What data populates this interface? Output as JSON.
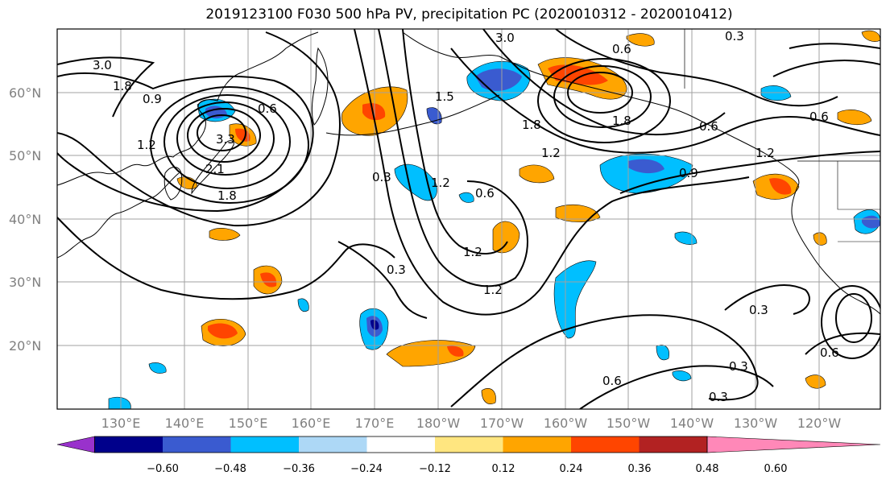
{
  "title": "2019123100 F030 500 hPa PV, precipitation PC (2020010312 - 2020010412)",
  "lat_labels": [
    "60°N",
    "50°N",
    "40°N",
    "30°N",
    "20°N"
  ],
  "lon_labels": [
    "130°E",
    "140°E",
    "150°E",
    "160°E",
    "170°E",
    "180°W",
    "170°W",
    "160°W",
    "150°W",
    "140°W",
    "130°W",
    "120°W"
  ],
  "colorbar": {
    "colors": [
      "#9932CC",
      "#00008B",
      "#3A5BD0",
      "#00BFFF",
      "#ADD8F6",
      "#FFFFFF",
      "#FFE680",
      "#FFA500",
      "#FF4500",
      "#B22222",
      "#FF88B8"
    ],
    "tick_labels": [
      "−0.60",
      "−0.48",
      "−0.36",
      "−0.24",
      "−0.12",
      "0.12",
      "0.24",
      "0.36",
      "0.48",
      "0.60"
    ]
  },
  "contour_labels": [
    {
      "text": "3.0"
    },
    {
      "text": "1.8"
    },
    {
      "text": "0.9"
    },
    {
      "text": "1.2"
    },
    {
      "text": "0.6"
    },
    {
      "text": "3.3"
    },
    {
      "text": "2.1"
    },
    {
      "text": "1.8"
    },
    {
      "text": "0.3"
    },
    {
      "text": "1.5"
    },
    {
      "text": "1.2"
    },
    {
      "text": "0.6"
    },
    {
      "text": "1.2"
    },
    {
      "text": "1.8"
    },
    {
      "text": "3.0"
    },
    {
      "text": "1.8"
    },
    {
      "text": "1.2"
    },
    {
      "text": "0.6"
    },
    {
      "text": "0.9"
    },
    {
      "text": "1.2"
    },
    {
      "text": "0.3"
    },
    {
      "text": "0.6"
    },
    {
      "text": "0.3"
    },
    {
      "text": "0.3"
    },
    {
      "text": "0.6"
    },
    {
      "text": "0.3"
    },
    {
      "text": "0.6"
    },
    {
      "text": "0.3"
    },
    {
      "text": "1.2"
    },
    {
      "text": "0.6"
    }
  ]
}
